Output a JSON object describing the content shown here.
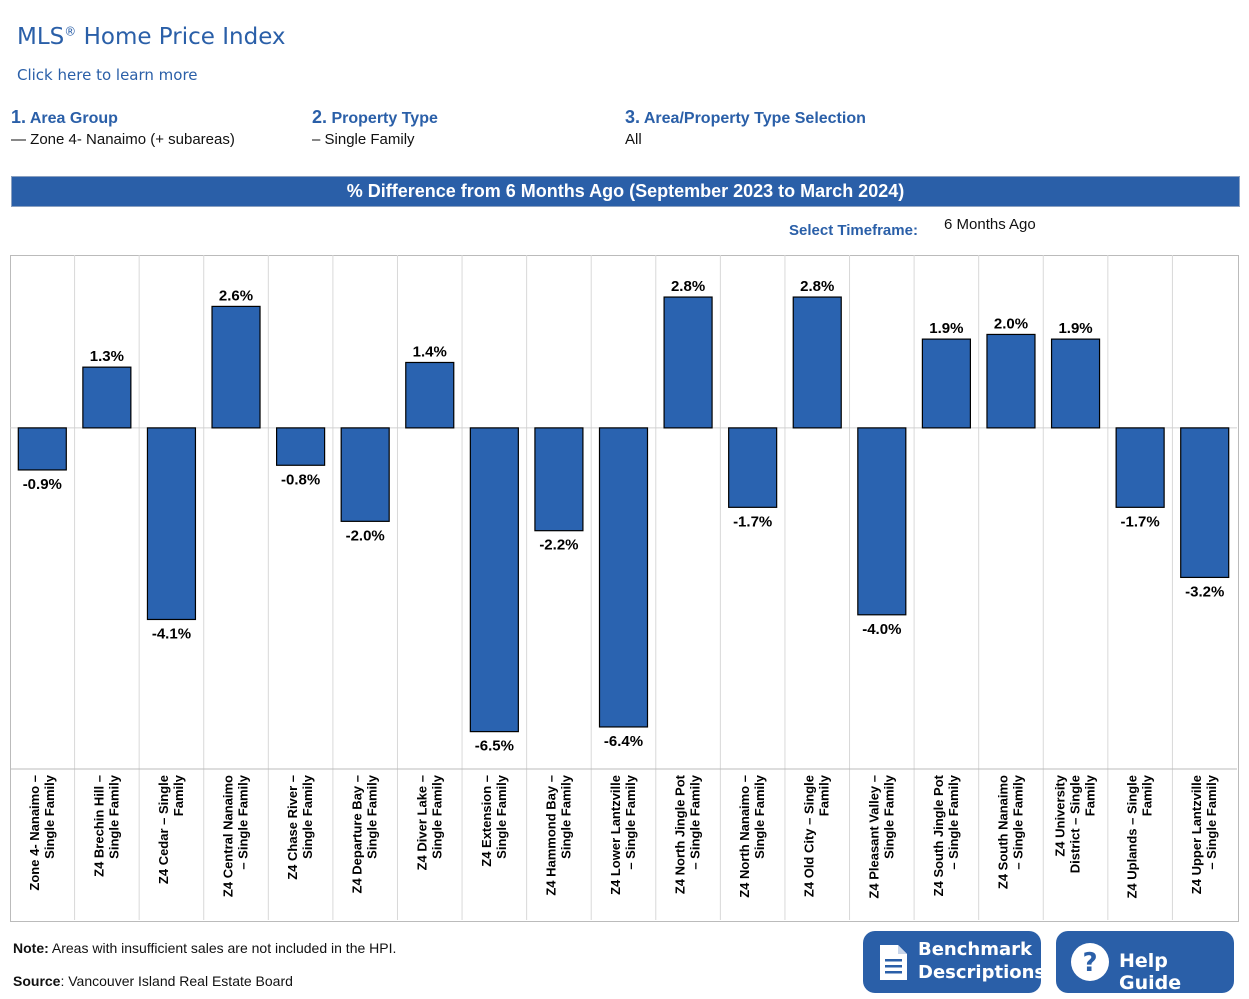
{
  "header": {
    "title": "MLS",
    "title_reg": "®",
    "title_rest": " Home Price Index",
    "learn_more": "Click here to learn more"
  },
  "selectors": [
    {
      "number": "1.",
      "label": "Area Group",
      "value": "— Zone 4- Nanaimo (+ subareas)"
    },
    {
      "number": "2.",
      "label": "Property Type",
      "value": "– Single Family"
    },
    {
      "number": "3.",
      "label": "Area/Property Type Selection",
      "value": "All"
    }
  ],
  "banner": "% Difference from 6 Months Ago (September 2023 to March 2024)",
  "timeframe": {
    "label": "Select Timeframe:",
    "value": "6 Months Ago"
  },
  "chart_data": {
    "type": "bar",
    "title": "% Difference from 6 Months Ago (September 2023 to March 2024)",
    "categories": [
      "Zone 4- Nanaimo – Single Family",
      "Z4 Brechin Hill – Single Family",
      "Z4 Cedar – Single Family",
      "Z4 Central Nanaimo – Single Family",
      "Z4 Chase River – Single Family",
      "Z4 Departure Bay – Single Family",
      "Z4 Diver Lake – Single Family",
      "Z4 Extension – Single Family",
      "Z4 Hammond Bay – Single Family",
      "Z4 Lower Lantzville – Single Family",
      "Z4 North Jingle Pot – Single Family",
      "Z4 North Nanaimo – Single Family",
      "Z4 Old City – Single Family",
      "Z4 Pleasant Valley – Single Family",
      "Z4 South Jingle Pot – Single Family",
      "Z4 South Nanaimo – Single Family",
      "Z4 University District – Single Family",
      "Z4 Uplands – Single Family",
      "Z4 Upper Lantzville – Single Family"
    ],
    "category_lines": [
      [
        "Zone 4- Nanaimo –",
        "Single Family"
      ],
      [
        "Z4 Brechin Hill –",
        "Single Family"
      ],
      [
        "Z4 Cedar – Single",
        "Family"
      ],
      [
        "Z4 Central Nanaimo",
        "– Single Family"
      ],
      [
        "Z4 Chase River –",
        "Single Family"
      ],
      [
        "Z4 Departure Bay –",
        "Single Family"
      ],
      [
        "Z4 Diver Lake –",
        "Single Family"
      ],
      [
        "Z4 Extension –",
        "Single Family"
      ],
      [
        "Z4 Hammond Bay –",
        "Single Family"
      ],
      [
        "Z4 Lower Lantzville",
        "– Single Family"
      ],
      [
        "Z4 North Jingle Pot",
        "– Single Family"
      ],
      [
        "Z4 North Nanaimo –",
        "Single Family"
      ],
      [
        "Z4 Old City – Single",
        "Family"
      ],
      [
        "Z4 Pleasant Valley –",
        "Single Family"
      ],
      [
        "Z4 South Jingle Pot",
        "– Single Family"
      ],
      [
        "Z4 South Nanaimo",
        "– Single Family"
      ],
      [
        "Z4 University",
        "District – Single",
        "Family"
      ],
      [
        "Z4 Uplands – Single",
        "Family"
      ],
      [
        "Z4 Upper Lantzville",
        "– Single Family"
      ]
    ],
    "values": [
      -0.9,
      1.3,
      -4.1,
      2.6,
      -0.8,
      -2.0,
      1.4,
      -6.5,
      -2.2,
      -6.4,
      2.8,
      -1.7,
      2.8,
      -4.0,
      1.9,
      2.0,
      1.9,
      -1.7,
      -3.2
    ],
    "labels": [
      "-0.9%",
      "1.3%",
      "-4.1%",
      "2.6%",
      "-0.8%",
      "-2.0%",
      "1.4%",
      "-6.5%",
      "-2.2%",
      "-6.4%",
      "2.8%",
      "-1.7%",
      "2.8%",
      "-4.0%",
      "1.9%",
      "2.0%",
      "1.9%",
      "-1.7%",
      "-3.2%"
    ],
    "ylim": [
      -7.3,
      3.7
    ],
    "bar_color": "#2a63b0"
  },
  "footer": {
    "note_bold": "Note:",
    "note_text": " Areas with insufficient sales are not included in the HPI.",
    "source_bold": "Source",
    "source_text": ": Vancouver Island Real Estate Board"
  },
  "buttons": {
    "benchmark_line1": "Benchmark",
    "benchmark_line2": "Descriptions",
    "help": "Help Guide",
    "icon_document": "document-icon",
    "icon_help": "question-icon"
  }
}
